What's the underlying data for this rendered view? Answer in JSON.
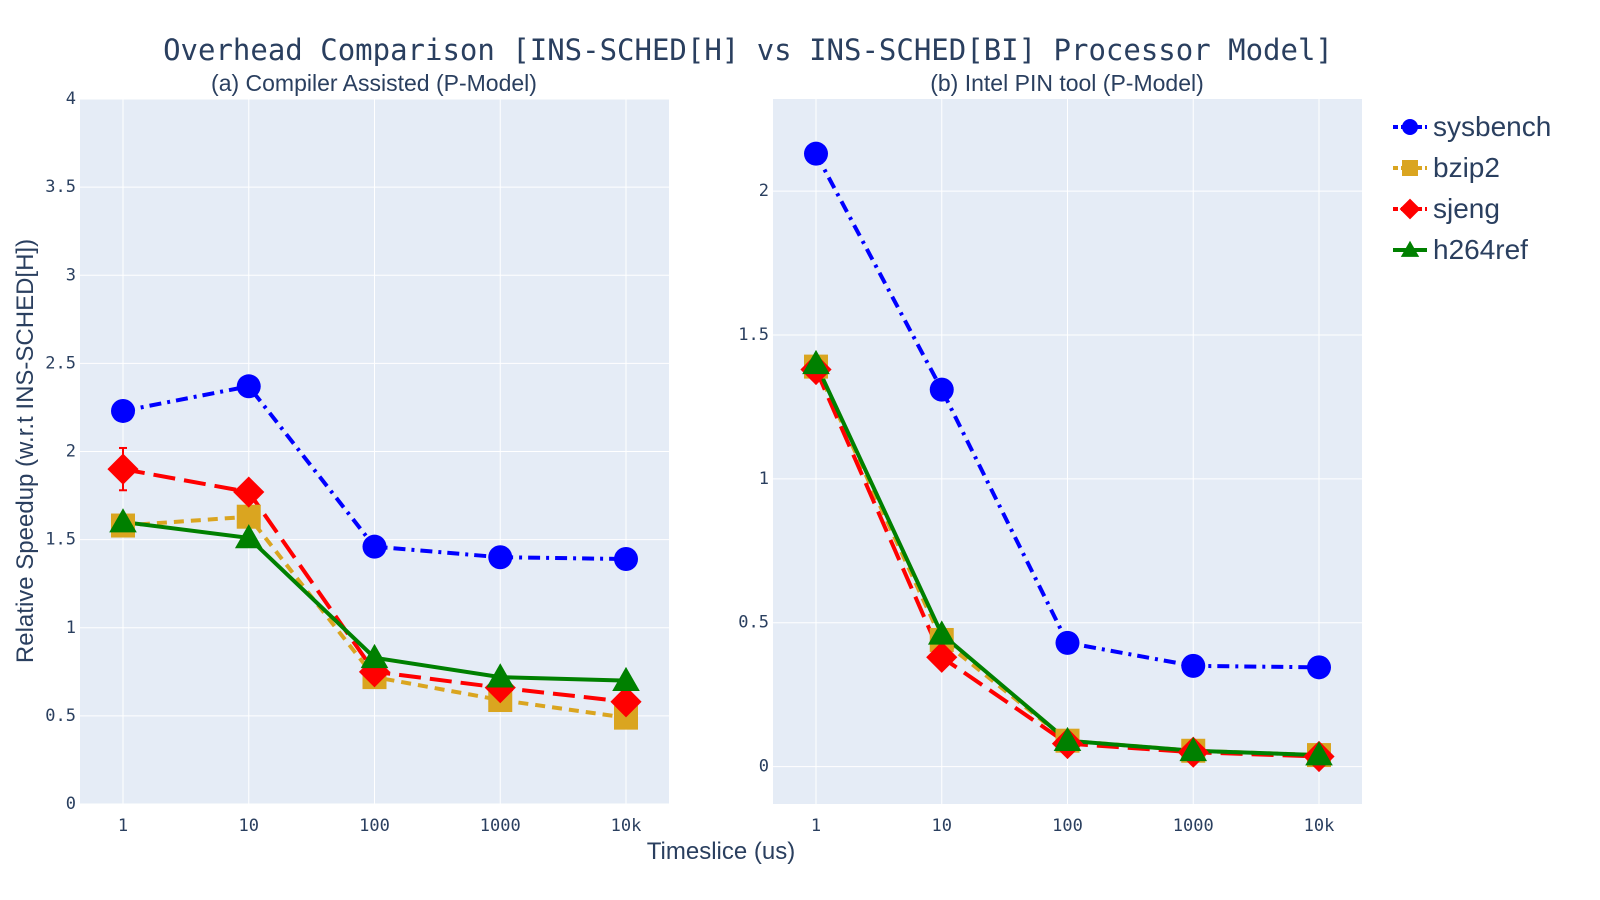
{
  "title": "Overhead Comparison [INS-SCHED[H] vs INS-SCHED[BI] Processor Model]",
  "xlabel": "Timeslice (us)",
  "ylabel": "Relative Speedup (w.r.t INS-SCHED[H])",
  "legend": {
    "position": "top-right",
    "items": [
      {
        "name": "sysbench",
        "color": "#0000ff",
        "marker": "circle",
        "dash": "dashdot"
      },
      {
        "name": "bzip2",
        "color": "#daa520",
        "marker": "square",
        "dash": "dash"
      },
      {
        "name": "sjeng",
        "color": "#ff0000",
        "marker": "diamond",
        "dash": "longdash"
      },
      {
        "name": "h264ref",
        "color": "#008000",
        "marker": "triangle-up",
        "dash": "solid"
      }
    ]
  },
  "chart_data": [
    {
      "type": "line",
      "title": "(a) Compiler Assisted (P-Model)",
      "categories": [
        "1",
        "10",
        "100",
        "1000",
        "10k"
      ],
      "ylim": [
        0,
        4
      ],
      "yticks": [
        "0",
        "0.5",
        "1",
        "1.5",
        "2",
        "2.5",
        "3",
        "3.5",
        "4"
      ],
      "ytick_values": [
        0,
        0.5,
        1,
        1.5,
        2,
        2.5,
        3,
        3.5,
        4
      ],
      "grid": true,
      "series": [
        {
          "name": "sysbench",
          "values": [
            2.23,
            2.37,
            1.46,
            1.4,
            1.39
          ]
        },
        {
          "name": "bzip2",
          "values": [
            1.58,
            1.63,
            0.72,
            0.59,
            0.49
          ]
        },
        {
          "name": "sjeng",
          "values": [
            1.9,
            1.77,
            0.75,
            0.66,
            0.58
          ],
          "error": [
            0.12,
            0,
            0,
            0,
            0
          ]
        },
        {
          "name": "h264ref",
          "values": [
            1.6,
            1.51,
            0.83,
            0.72,
            0.7
          ]
        }
      ]
    },
    {
      "type": "line",
      "title": "(b) Intel PIN tool (P-Model)",
      "categories": [
        "1",
        "10",
        "100",
        "1000",
        "10k"
      ],
      "ylim": [
        -0.13,
        2.32
      ],
      "yticks": [
        "0",
        "0.5",
        "1",
        "1.5",
        "2"
      ],
      "ytick_values": [
        0,
        0.5,
        1,
        1.5,
        2
      ],
      "grid": true,
      "series": [
        {
          "name": "sysbench",
          "values": [
            2.13,
            1.31,
            0.43,
            0.35,
            0.345
          ]
        },
        {
          "name": "bzip2",
          "values": [
            1.39,
            0.44,
            0.09,
            0.055,
            0.04
          ]
        },
        {
          "name": "sjeng",
          "values": [
            1.38,
            0.38,
            0.08,
            0.05,
            0.035
          ]
        },
        {
          "name": "h264ref",
          "values": [
            1.4,
            0.46,
            0.09,
            0.055,
            0.04
          ]
        }
      ]
    }
  ]
}
